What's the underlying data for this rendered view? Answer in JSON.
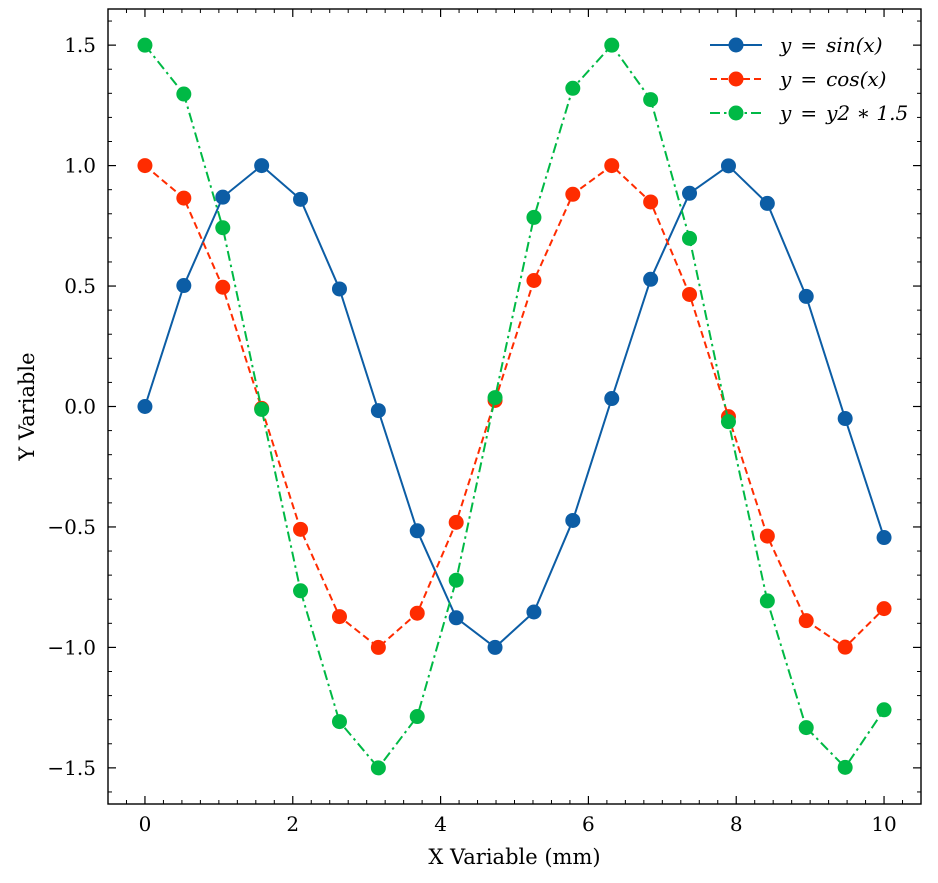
{
  "chart_data": {
    "type": "line",
    "title": "",
    "xlabel": "X Variable (mm)",
    "ylabel": "Y Variable",
    "xlim": [
      -0.5,
      10.5
    ],
    "ylim": [
      -1.65,
      1.65
    ],
    "xticks": [
      0,
      2,
      4,
      6,
      8,
      10
    ],
    "xtick_labels": [
      "0",
      "2",
      "4",
      "6",
      "8",
      "10"
    ],
    "yticks": [
      -1.5,
      -1.0,
      -0.5,
      0.0,
      0.5,
      1.0,
      1.5
    ],
    "ytick_labels": [
      "−1.5",
      "−1.0",
      "−0.5",
      "0.0",
      "0.5",
      "1.0",
      "1.5"
    ],
    "grid": false,
    "legend_position": "top-right",
    "x": [
      0,
      0.526,
      1.053,
      1.579,
      2.105,
      2.632,
      3.158,
      3.684,
      4.211,
      4.737,
      5.263,
      5.789,
      6.316,
      6.842,
      7.368,
      7.895,
      8.421,
      8.947,
      9.474,
      10.0
    ],
    "series": [
      {
        "name": "y = sin(x)",
        "color": "#0C5DA5",
        "linestyle": "solid",
        "marker": "circle",
        "values": [
          0.0,
          0.502,
          0.869,
          1.0,
          0.86,
          0.488,
          -0.017,
          -0.516,
          -0.877,
          -1.0,
          -0.853,
          -0.473,
          0.033,
          0.528,
          0.885,
          0.999,
          0.843,
          0.457,
          -0.05,
          -0.544
        ]
      },
      {
        "name": "y = cos(x)",
        "color": "#FF2C00",
        "linestyle": "dashed",
        "marker": "circle",
        "values": [
          1.0,
          0.865,
          0.495,
          -0.008,
          -0.51,
          -0.872,
          -1.0,
          -0.858,
          -0.481,
          0.025,
          0.523,
          0.881,
          1.0,
          0.849,
          0.465,
          -0.042,
          -0.538,
          -0.889,
          -0.999,
          -0.839
        ]
      },
      {
        "name": "y = y2 * 1.5",
        "color": "#00B945",
        "linestyle": "dashdot",
        "marker": "circle",
        "values": [
          1.5,
          1.297,
          0.742,
          -0.012,
          -0.765,
          -1.308,
          -1.5,
          -1.287,
          -0.721,
          0.037,
          0.785,
          1.321,
          1.5,
          1.274,
          0.698,
          -0.063,
          -0.807,
          -1.333,
          -1.498,
          -1.259
        ]
      }
    ],
    "legend_labels": [
      {
        "lhs": "y",
        "eq": "=",
        "rhs": "sin(x)"
      },
      {
        "lhs": "y",
        "eq": "=",
        "rhs": "cos(x)"
      },
      {
        "lhs": "y",
        "eq": "=",
        "rhs": "y2 ∗ 1.5"
      }
    ]
  }
}
